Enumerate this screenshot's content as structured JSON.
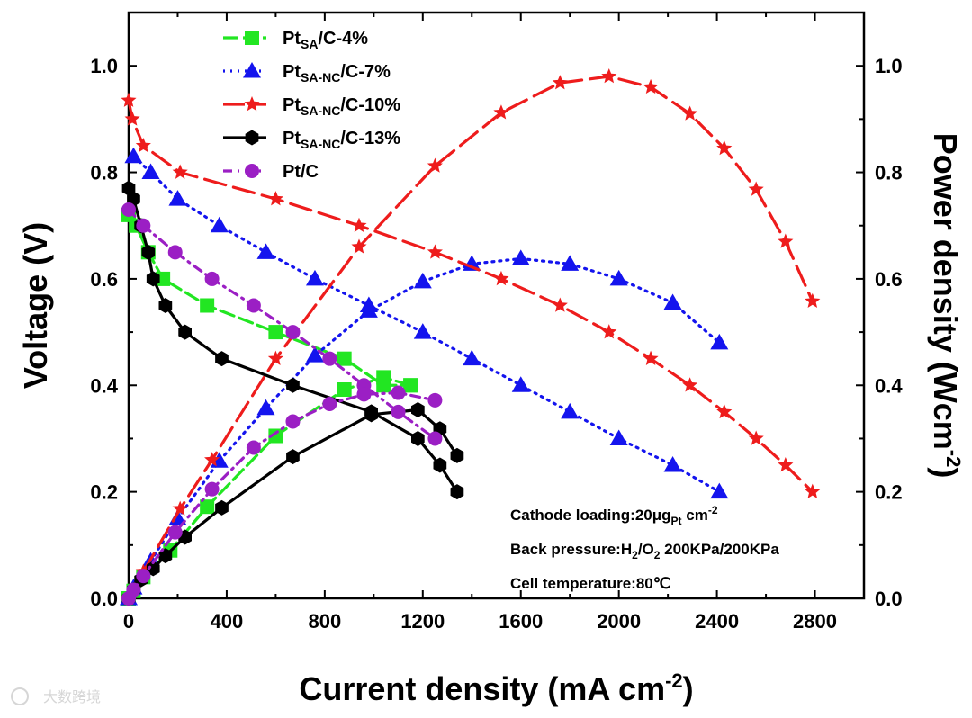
{
  "chart_data": {
    "type": "line",
    "xlabel": "Current density (mA cm",
    "xlabel_sup": "-2",
    "xlabel_end": ")",
    "ylabel_left": "Voltage (V)",
    "ylabel_right": "Power density (Wcm",
    "ylabel_right_sup": "-2",
    "ylabel_right_end": ")",
    "xlim": [
      0,
      3000
    ],
    "ylim_left": [
      0,
      1.1
    ],
    "ylim_right": [
      0,
      1.1
    ],
    "x_ticks": [
      0,
      400,
      800,
      1200,
      1600,
      2000,
      2400,
      2800
    ],
    "y_ticks": [
      0.0,
      0.2,
      0.4,
      0.6,
      0.8,
      1.0
    ],
    "y_tick_labels": [
      "0.0",
      "0.2",
      "0.4",
      "0.6",
      "0.8",
      "1.0"
    ],
    "legend_position": "top-left",
    "series": [
      {
        "id": "s1",
        "legend": {
          "base": "Pt",
          "sub": "SA",
          "rest": "/C-4%"
        },
        "color": "#22e622",
        "marker": "square",
        "dash": "long",
        "polarization": [
          [
            0,
            0.72
          ],
          [
            30,
            0.7
          ],
          [
            80,
            0.65
          ],
          [
            140,
            0.6
          ],
          [
            320,
            0.55
          ],
          [
            600,
            0.5
          ],
          [
            880,
            0.45
          ],
          [
            1040,
            0.4
          ],
          [
            1150,
            0.4
          ]
        ],
        "power": [
          [
            0,
            0
          ],
          [
            20,
            0.014
          ],
          [
            60,
            0.04
          ],
          [
            170,
            0.09
          ],
          [
            320,
            0.172
          ],
          [
            600,
            0.305
          ],
          [
            880,
            0.392
          ],
          [
            1040,
            0.415
          ],
          [
            1150,
            0.4
          ]
        ]
      },
      {
        "id": "s2",
        "legend": {
          "base": "Pt",
          "sub": "SA-NC",
          "rest": "/C-7%"
        },
        "color": "#1414ee",
        "marker": "triangle",
        "dash": "dotted",
        "polarization": [
          [
            20,
            0.83
          ],
          [
            90,
            0.8
          ],
          [
            200,
            0.75
          ],
          [
            370,
            0.7
          ],
          [
            560,
            0.65
          ],
          [
            760,
            0.6
          ],
          [
            980,
            0.55
          ],
          [
            1200,
            0.5
          ],
          [
            1400,
            0.45
          ],
          [
            1600,
            0.4
          ],
          [
            1800,
            0.35
          ],
          [
            2000,
            0.3
          ],
          [
            2220,
            0.25
          ],
          [
            2410,
            0.2
          ]
        ],
        "power": [
          [
            0,
            0
          ],
          [
            20,
            0.02
          ],
          [
            90,
            0.07
          ],
          [
            200,
            0.15
          ],
          [
            370,
            0.258
          ],
          [
            560,
            0.357
          ],
          [
            760,
            0.456
          ],
          [
            980,
            0.54
          ],
          [
            1200,
            0.595
          ],
          [
            1400,
            0.628
          ],
          [
            1600,
            0.638
          ],
          [
            1800,
            0.628
          ],
          [
            2000,
            0.6
          ],
          [
            2220,
            0.555
          ],
          [
            2410,
            0.48
          ]
        ]
      },
      {
        "id": "s3",
        "legend": {
          "base": "Pt",
          "sub": "SA-NC",
          "rest": "/C-10%"
        },
        "color": "#ee1c1c",
        "marker": "star",
        "dash": "dash",
        "polarization": [
          [
            0,
            0.935
          ],
          [
            15,
            0.9
          ],
          [
            60,
            0.85
          ],
          [
            210,
            0.8
          ],
          [
            600,
            0.75
          ],
          [
            940,
            0.7
          ],
          [
            1250,
            0.65
          ],
          [
            1520,
            0.6
          ],
          [
            1760,
            0.55
          ],
          [
            1960,
            0.5
          ],
          [
            2130,
            0.45
          ],
          [
            2290,
            0.4
          ],
          [
            2430,
            0.35
          ],
          [
            2560,
            0.3
          ],
          [
            2680,
            0.25
          ],
          [
            2790,
            0.2
          ]
        ],
        "power": [
          [
            0,
            0
          ],
          [
            60,
            0.05
          ],
          [
            210,
            0.168
          ],
          [
            340,
            0.26
          ],
          [
            600,
            0.45
          ],
          [
            940,
            0.66
          ],
          [
            1250,
            0.812
          ],
          [
            1520,
            0.912
          ],
          [
            1760,
            0.968
          ],
          [
            1960,
            0.98
          ],
          [
            2130,
            0.96
          ],
          [
            2290,
            0.91
          ],
          [
            2430,
            0.845
          ],
          [
            2560,
            0.768
          ],
          [
            2680,
            0.67
          ],
          [
            2790,
            0.558
          ]
        ]
      },
      {
        "id": "s4",
        "legend": {
          "base": "Pt",
          "sub": "SA-NC",
          "rest": "/C-13%"
        },
        "color": "#000000",
        "marker": "hexagon",
        "dash": "solid",
        "polarization": [
          [
            0,
            0.77
          ],
          [
            20,
            0.75
          ],
          [
            50,
            0.7
          ],
          [
            80,
            0.65
          ],
          [
            100,
            0.6
          ],
          [
            150,
            0.55
          ],
          [
            230,
            0.5
          ],
          [
            380,
            0.45
          ],
          [
            670,
            0.4
          ],
          [
            990,
            0.35
          ],
          [
            1180,
            0.3
          ],
          [
            1270,
            0.25
          ],
          [
            1340,
            0.2
          ]
        ],
        "power": [
          [
            0,
            0
          ],
          [
            20,
            0.016
          ],
          [
            50,
            0.035
          ],
          [
            100,
            0.056
          ],
          [
            150,
            0.08
          ],
          [
            230,
            0.115
          ],
          [
            380,
            0.17
          ],
          [
            670,
            0.266
          ],
          [
            990,
            0.345
          ],
          [
            1180,
            0.354
          ],
          [
            1270,
            0.318
          ],
          [
            1340,
            0.268
          ]
        ]
      },
      {
        "id": "s5",
        "legend": {
          "base": "Pt/C",
          "sub": "",
          "rest": ""
        },
        "color": "#9b1fc4",
        "marker": "circle",
        "dash": "dashdot",
        "polarization": [
          [
            0,
            0.73
          ],
          [
            60,
            0.7
          ],
          [
            190,
            0.65
          ],
          [
            340,
            0.6
          ],
          [
            510,
            0.55
          ],
          [
            670,
            0.5
          ],
          [
            820,
            0.45
          ],
          [
            960,
            0.4
          ],
          [
            1100,
            0.35
          ],
          [
            1250,
            0.3
          ]
        ],
        "power": [
          [
            0,
            0
          ],
          [
            20,
            0.016
          ],
          [
            60,
            0.042
          ],
          [
            190,
            0.124
          ],
          [
            340,
            0.205
          ],
          [
            510,
            0.283
          ],
          [
            670,
            0.332
          ],
          [
            820,
            0.365
          ],
          [
            960,
            0.383
          ],
          [
            1100,
            0.386
          ],
          [
            1250,
            0.372
          ]
        ]
      }
    ],
    "annotations": [
      {
        "parts": [
          [
            "t",
            "Cathode loading:20μg"
          ],
          [
            "sub",
            "Pt"
          ],
          [
            "t",
            " cm"
          ],
          [
            "sup",
            "-2"
          ]
        ]
      },
      {
        "parts": [
          [
            "t",
            "Back pressure:H"
          ],
          [
            "sub",
            "2"
          ],
          [
            "t",
            "/O"
          ],
          [
            "sub",
            "2"
          ],
          [
            "t",
            " 200KPa/200KPa"
          ]
        ]
      },
      {
        "parts": [
          [
            "t",
            "Cell temperature:80℃"
          ]
        ]
      }
    ]
  },
  "watermark": "大数跨境"
}
